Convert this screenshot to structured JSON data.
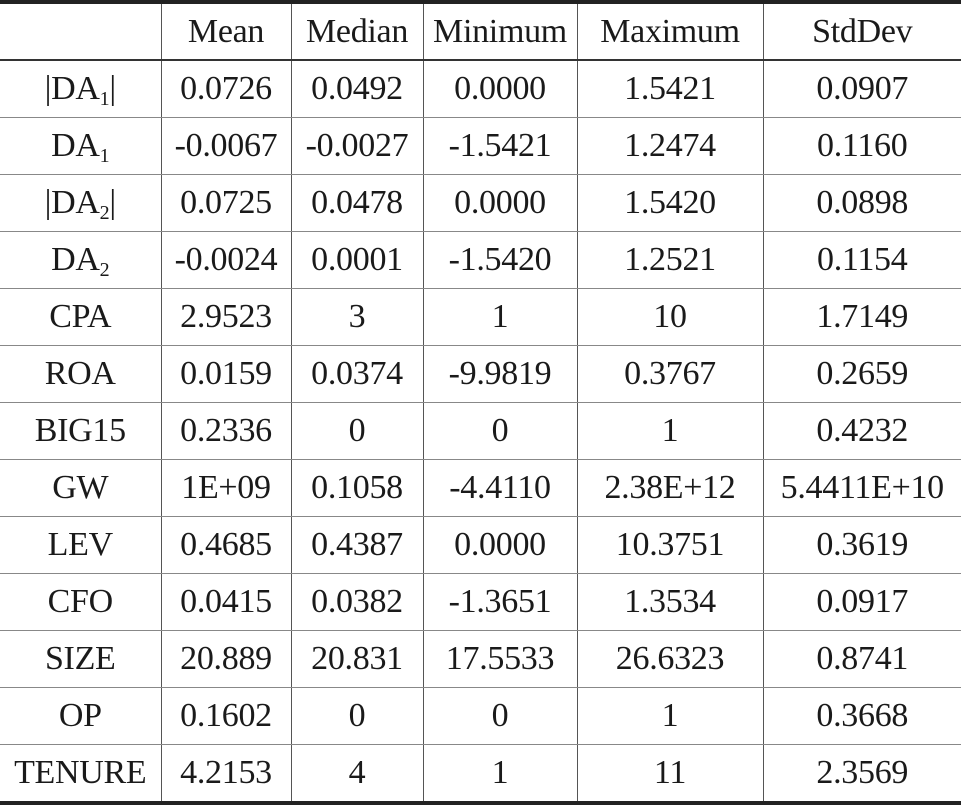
{
  "table": {
    "headers": [
      "",
      "Mean",
      "Median",
      "Minimum",
      "Maximum",
      "StdDev"
    ],
    "rows": [
      {
        "label": {
          "pre": "|",
          "base": "DA",
          "sub": "1",
          "post": "|"
        },
        "values": [
          "0.0726",
          "0.0492",
          "0.0000",
          "1.5421",
          "0.0907"
        ]
      },
      {
        "label": {
          "pre": "",
          "base": "DA",
          "sub": "1",
          "post": ""
        },
        "values": [
          "-0.0067",
          "-0.0027",
          "-1.5421",
          "1.2474",
          "0.1160"
        ]
      },
      {
        "label": {
          "pre": "|",
          "base": "DA",
          "sub": "2",
          "post": "|"
        },
        "values": [
          "0.0725",
          "0.0478",
          "0.0000",
          "1.5420",
          "0.0898"
        ]
      },
      {
        "label": {
          "pre": "",
          "base": "DA",
          "sub": "2",
          "post": ""
        },
        "values": [
          "-0.0024",
          "0.0001",
          "-1.5420",
          "1.2521",
          "0.1154"
        ]
      },
      {
        "label": {
          "pre": "",
          "base": "CPA",
          "sub": "",
          "post": ""
        },
        "values": [
          "2.9523",
          "3",
          "1",
          "10",
          "1.7149"
        ]
      },
      {
        "label": {
          "pre": "",
          "base": "ROA",
          "sub": "",
          "post": ""
        },
        "values": [
          "0.0159",
          "0.0374",
          "-9.9819",
          "0.3767",
          "0.2659"
        ]
      },
      {
        "label": {
          "pre": "",
          "base": "BIG15",
          "sub": "",
          "post": ""
        },
        "values": [
          "0.2336",
          "0",
          "0",
          "1",
          "0.4232"
        ]
      },
      {
        "label": {
          "pre": "",
          "base": "GW",
          "sub": "",
          "post": ""
        },
        "values": [
          "1E+09",
          "0.1058",
          "-4.4110",
          "2.38E+12",
          "5.4411E+10"
        ]
      },
      {
        "label": {
          "pre": "",
          "base": "LEV",
          "sub": "",
          "post": ""
        },
        "values": [
          "0.4685",
          "0.4387",
          "0.0000",
          "10.3751",
          "0.3619"
        ]
      },
      {
        "label": {
          "pre": "",
          "base": "CFO",
          "sub": "",
          "post": ""
        },
        "values": [
          "0.0415",
          "0.0382",
          "-1.3651",
          "1.3534",
          "0.0917"
        ]
      },
      {
        "label": {
          "pre": "",
          "base": "SIZE",
          "sub": "",
          "post": ""
        },
        "values": [
          "20.889",
          "20.831",
          "17.5533",
          "26.6323",
          "0.8741"
        ]
      },
      {
        "label": {
          "pre": "",
          "base": "OP",
          "sub": "",
          "post": ""
        },
        "values": [
          "0.1602",
          "0",
          "0",
          "1",
          "0.3668"
        ]
      },
      {
        "label": {
          "pre": "",
          "base": "TENURE",
          "sub": "",
          "post": ""
        },
        "values": [
          "4.2153",
          "4",
          "1",
          "11",
          "2.3569"
        ]
      }
    ]
  }
}
